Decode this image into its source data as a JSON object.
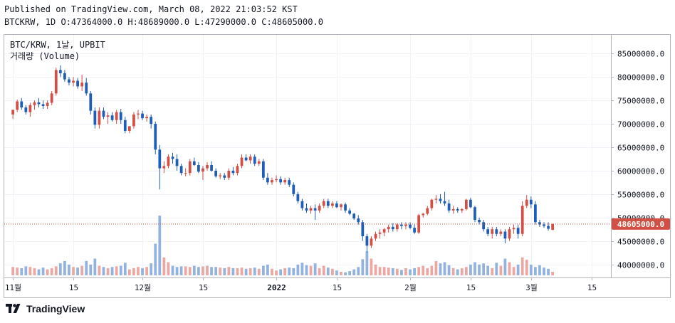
{
  "header": {
    "published_line": "Published on TradingView.com, March 08, 2022 21:03:52 KST",
    "ohlc_line": "BTCKRW, 1D O:47364000.0 H:48689000.0 L:47290000.0 C:48605000.0"
  },
  "legend": {
    "symbol_line": "BTC/KRW, 1날, UPBIT",
    "volume_line": "거래량 (Volume)"
  },
  "colors": {
    "up": "#d24f45",
    "down": "#1e5eb8",
    "vol_up": "#eba8a3",
    "vol_down": "#92b3e0",
    "price_label_bg": "#d24f45"
  },
  "brand": {
    "logo_text": "TradingView"
  },
  "chart_data": {
    "type": "candlestick",
    "title": "BTC/KRW, 1날, UPBIT",
    "yaxis": {
      "ticks": [
        "85000000.0",
        "80000000.0",
        "75000000.0",
        "70000000.0",
        "65000000.0",
        "60000000.0",
        "55000000.0",
        "50000000.0",
        "45000000.0",
        "40000000.0"
      ],
      "tick_values": [
        85000000,
        80000000,
        75000000,
        70000000,
        65000000,
        60000000,
        55000000,
        50000000,
        45000000,
        40000000
      ],
      "range": [
        37200000,
        89000000
      ]
    },
    "xaxis": {
      "ticks": [
        {
          "label": "11월",
          "day": 0
        },
        {
          "label": "15",
          "day": 14
        },
        {
          "label": "12월",
          "day": 30
        },
        {
          "label": "15",
          "day": 44
        },
        {
          "label": "2022",
          "day": 61
        },
        {
          "label": "15",
          "day": 75
        },
        {
          "label": "2월",
          "day": 92
        },
        {
          "label": "15",
          "day": 106
        },
        {
          "label": "3월",
          "day": 120
        },
        {
          "label": "15",
          "day": 134
        }
      ],
      "range_days": [
        -2,
        138.5
      ]
    },
    "last_price": 48605000,
    "last_price_label": "48605000.0",
    "volume_max": 100,
    "candles": [
      {
        "o": 72.0,
        "h": 73.0,
        "l": 71.0,
        "c": 73.0,
        "v": 14
      },
      {
        "o": 73.0,
        "h": 75.2,
        "l": 72.5,
        "c": 74.8,
        "v": 13
      },
      {
        "o": 74.8,
        "h": 75.5,
        "l": 73.0,
        "c": 73.5,
        "v": 12
      },
      {
        "o": 73.5,
        "h": 74.0,
        "l": 72.0,
        "c": 72.5,
        "v": 15
      },
      {
        "o": 72.5,
        "h": 74.5,
        "l": 71.5,
        "c": 74.0,
        "v": 14
      },
      {
        "o": 74.0,
        "h": 75.0,
        "l": 73.0,
        "c": 74.6,
        "v": 12
      },
      {
        "o": 74.6,
        "h": 75.5,
        "l": 73.5,
        "c": 74.2,
        "v": 10
      },
      {
        "o": 74.2,
        "h": 75.0,
        "l": 73.2,
        "c": 73.8,
        "v": 13
      },
      {
        "o": 73.8,
        "h": 75.0,
        "l": 73.2,
        "c": 74.5,
        "v": 10
      },
      {
        "o": 74.5,
        "h": 77.0,
        "l": 74.0,
        "c": 76.5,
        "v": 12
      },
      {
        "o": 76.5,
        "h": 82.0,
        "l": 76.0,
        "c": 81.5,
        "v": 15
      },
      {
        "o": 81.5,
        "h": 82.5,
        "l": 80.0,
        "c": 80.8,
        "v": 20
      },
      {
        "o": 80.8,
        "h": 81.5,
        "l": 79.0,
        "c": 79.5,
        "v": 24
      },
      {
        "o": 79.5,
        "h": 80.0,
        "l": 78.2,
        "c": 78.8,
        "v": 18
      },
      {
        "o": 78.8,
        "h": 80.0,
        "l": 78.0,
        "c": 79.2,
        "v": 14
      },
      {
        "o": 79.2,
        "h": 79.8,
        "l": 77.5,
        "c": 78.0,
        "v": 13
      },
      {
        "o": 78.0,
        "h": 80.5,
        "l": 77.0,
        "c": 78.8,
        "v": 16
      },
      {
        "o": 78.8,
        "h": 79.8,
        "l": 76.0,
        "c": 76.5,
        "v": 24
      },
      {
        "o": 76.5,
        "h": 77.0,
        "l": 72.0,
        "c": 72.8,
        "v": 18
      },
      {
        "o": 72.8,
        "h": 73.5,
        "l": 69.0,
        "c": 69.8,
        "v": 28
      },
      {
        "o": 69.8,
        "h": 73.5,
        "l": 69.0,
        "c": 72.8,
        "v": 16
      },
      {
        "o": 72.8,
        "h": 73.5,
        "l": 71.0,
        "c": 71.5,
        "v": 14
      },
      {
        "o": 71.5,
        "h": 72.5,
        "l": 70.0,
        "c": 71.8,
        "v": 12
      },
      {
        "o": 71.8,
        "h": 72.5,
        "l": 70.5,
        "c": 70.8,
        "v": 14
      },
      {
        "o": 70.8,
        "h": 73.0,
        "l": 70.0,
        "c": 72.5,
        "v": 15
      },
      {
        "o": 72.5,
        "h": 73.2,
        "l": 70.0,
        "c": 70.8,
        "v": 16
      },
      {
        "o": 70.8,
        "h": 71.5,
        "l": 68.0,
        "c": 68.5,
        "v": 21
      },
      {
        "o": 68.5,
        "h": 69.5,
        "l": 68.0,
        "c": 69.5,
        "v": 10
      },
      {
        "o": 69.5,
        "h": 72.5,
        "l": 69.0,
        "c": 72.0,
        "v": 12
      },
      {
        "o": 72.0,
        "h": 73.0,
        "l": 71.0,
        "c": 72.2,
        "v": 14
      },
      {
        "o": 72.2,
        "h": 72.8,
        "l": 70.8,
        "c": 71.2,
        "v": 12
      },
      {
        "o": 71.2,
        "h": 72.0,
        "l": 70.5,
        "c": 71.5,
        "v": 14
      },
      {
        "o": 71.5,
        "h": 72.0,
        "l": 69.0,
        "c": 70.0,
        "v": 20
      },
      {
        "o": 70.0,
        "h": 70.5,
        "l": 63.5,
        "c": 64.5,
        "v": 53
      },
      {
        "o": 64.5,
        "h": 65.5,
        "l": 56.0,
        "c": 60.5,
        "v": 100
      },
      {
        "o": 60.5,
        "h": 62.0,
        "l": 59.5,
        "c": 61.0,
        "v": 30
      },
      {
        "o": 61.0,
        "h": 63.5,
        "l": 60.5,
        "c": 63.0,
        "v": 22
      },
      {
        "o": 63.0,
        "h": 63.8,
        "l": 61.5,
        "c": 62.5,
        "v": 16
      },
      {
        "o": 62.5,
        "h": 63.5,
        "l": 60.0,
        "c": 61.0,
        "v": 14
      },
      {
        "o": 61.0,
        "h": 61.5,
        "l": 59.0,
        "c": 59.5,
        "v": 15
      },
      {
        "o": 59.5,
        "h": 60.5,
        "l": 58.8,
        "c": 59.5,
        "v": 15
      },
      {
        "o": 59.5,
        "h": 62.5,
        "l": 59.0,
        "c": 62.0,
        "v": 14
      },
      {
        "o": 62.0,
        "h": 62.8,
        "l": 61.0,
        "c": 61.2,
        "v": 16
      },
      {
        "o": 61.2,
        "h": 61.8,
        "l": 59.5,
        "c": 59.8,
        "v": 14
      },
      {
        "o": 59.8,
        "h": 61.0,
        "l": 58.0,
        "c": 60.5,
        "v": 15
      },
      {
        "o": 60.5,
        "h": 61.8,
        "l": 60.0,
        "c": 61.2,
        "v": 16
      },
      {
        "o": 61.2,
        "h": 62.0,
        "l": 59.8,
        "c": 60.0,
        "v": 14
      },
      {
        "o": 60.0,
        "h": 60.5,
        "l": 58.5,
        "c": 58.8,
        "v": 14
      },
      {
        "o": 58.8,
        "h": 59.5,
        "l": 58.2,
        "c": 59.0,
        "v": 13
      },
      {
        "o": 59.0,
        "h": 59.5,
        "l": 58.0,
        "c": 58.5,
        "v": 12
      },
      {
        "o": 58.5,
        "h": 60.5,
        "l": 58.0,
        "c": 60.0,
        "v": 14
      },
      {
        "o": 60.0,
        "h": 60.8,
        "l": 59.0,
        "c": 59.5,
        "v": 12
      },
      {
        "o": 59.5,
        "h": 61.5,
        "l": 59.0,
        "c": 61.0,
        "v": 12
      },
      {
        "o": 61.0,
        "h": 63.5,
        "l": 60.5,
        "c": 62.8,
        "v": 13
      },
      {
        "o": 62.8,
        "h": 63.5,
        "l": 62.0,
        "c": 62.2,
        "v": 11
      },
      {
        "o": 62.2,
        "h": 63.5,
        "l": 61.5,
        "c": 63.0,
        "v": 12
      },
      {
        "o": 63.0,
        "h": 63.5,
        "l": 61.0,
        "c": 61.5,
        "v": 13
      },
      {
        "o": 61.5,
        "h": 62.5,
        "l": 61.0,
        "c": 62.0,
        "v": 11
      },
      {
        "o": 62.0,
        "h": 62.5,
        "l": 58.0,
        "c": 58.5,
        "v": 16
      },
      {
        "o": 58.5,
        "h": 59.5,
        "l": 57.0,
        "c": 57.5,
        "v": 18
      },
      {
        "o": 57.5,
        "h": 58.5,
        "l": 57.0,
        "c": 58.0,
        "v": 11
      },
      {
        "o": 58.0,
        "h": 59.0,
        "l": 57.5,
        "c": 58.2,
        "v": 8
      },
      {
        "o": 58.2,
        "h": 58.8,
        "l": 57.0,
        "c": 57.5,
        "v": 10
      },
      {
        "o": 57.5,
        "h": 58.5,
        "l": 57.0,
        "c": 58.0,
        "v": 12
      },
      {
        "o": 58.0,
        "h": 58.5,
        "l": 56.5,
        "c": 57.0,
        "v": 13
      },
      {
        "o": 57.0,
        "h": 57.5,
        "l": 54.5,
        "c": 55.0,
        "v": 12
      },
      {
        "o": 55.0,
        "h": 55.5,
        "l": 53.0,
        "c": 53.5,
        "v": 18
      },
      {
        "o": 53.5,
        "h": 54.0,
        "l": 51.5,
        "c": 52.0,
        "v": 21
      },
      {
        "o": 52.0,
        "h": 53.0,
        "l": 51.0,
        "c": 51.5,
        "v": 17
      },
      {
        "o": 51.5,
        "h": 52.5,
        "l": 50.8,
        "c": 52.0,
        "v": 16
      },
      {
        "o": 52.0,
        "h": 52.8,
        "l": 49.5,
        "c": 51.5,
        "v": 20
      },
      {
        "o": 51.5,
        "h": 53.0,
        "l": 51.0,
        "c": 52.5,
        "v": 12
      },
      {
        "o": 52.5,
        "h": 54.0,
        "l": 52.0,
        "c": 53.5,
        "v": 16
      },
      {
        "o": 53.5,
        "h": 54.0,
        "l": 52.0,
        "c": 52.5,
        "v": 13
      },
      {
        "o": 52.5,
        "h": 53.5,
        "l": 52.0,
        "c": 53.0,
        "v": 11
      },
      {
        "o": 53.0,
        "h": 53.5,
        "l": 52.0,
        "c": 52.2,
        "v": 8
      },
      {
        "o": 52.2,
        "h": 53.0,
        "l": 51.5,
        "c": 52.8,
        "v": 6
      },
      {
        "o": 52.8,
        "h": 53.2,
        "l": 51.0,
        "c": 51.5,
        "v": 5
      },
      {
        "o": 51.5,
        "h": 52.0,
        "l": 50.5,
        "c": 50.8,
        "v": 7
      },
      {
        "o": 50.8,
        "h": 51.0,
        "l": 49.5,
        "c": 49.8,
        "v": 10
      },
      {
        "o": 49.8,
        "h": 50.5,
        "l": 48.5,
        "c": 49.0,
        "v": 14
      },
      {
        "o": 49.0,
        "h": 49.5,
        "l": 45.0,
        "c": 46.0,
        "v": 27
      },
      {
        "o": 46.0,
        "h": 46.5,
        "l": 42.5,
        "c": 44.0,
        "v": 40
      },
      {
        "o": 44.0,
        "h": 46.0,
        "l": 43.5,
        "c": 45.5,
        "v": 28
      },
      {
        "o": 45.5,
        "h": 47.0,
        "l": 45.0,
        "c": 46.5,
        "v": 18
      },
      {
        "o": 46.5,
        "h": 47.5,
        "l": 45.5,
        "c": 46.8,
        "v": 14
      },
      {
        "o": 46.8,
        "h": 47.8,
        "l": 46.0,
        "c": 47.5,
        "v": 14
      },
      {
        "o": 47.5,
        "h": 48.5,
        "l": 46.8,
        "c": 48.0,
        "v": 13
      },
      {
        "o": 48.0,
        "h": 48.8,
        "l": 47.0,
        "c": 47.5,
        "v": 12
      },
      {
        "o": 47.5,
        "h": 48.8,
        "l": 47.0,
        "c": 48.5,
        "v": 11
      },
      {
        "o": 48.5,
        "h": 49.0,
        "l": 47.5,
        "c": 48.2,
        "v": 9
      },
      {
        "o": 48.2,
        "h": 49.0,
        "l": 47.5,
        "c": 48.5,
        "v": 12
      },
      {
        "o": 48.5,
        "h": 49.0,
        "l": 47.5,
        "c": 47.8,
        "v": 10
      },
      {
        "o": 47.8,
        "h": 48.5,
        "l": 46.5,
        "c": 46.8,
        "v": 12
      },
      {
        "o": 46.8,
        "h": 50.8,
        "l": 46.5,
        "c": 50.5,
        "v": 14
      },
      {
        "o": 50.5,
        "h": 51.0,
        "l": 50.0,
        "c": 50.8,
        "v": 16
      },
      {
        "o": 50.8,
        "h": 52.5,
        "l": 50.5,
        "c": 52.0,
        "v": 12
      },
      {
        "o": 52.0,
        "h": 54.0,
        "l": 51.5,
        "c": 53.8,
        "v": 16
      },
      {
        "o": 53.8,
        "h": 54.8,
        "l": 53.0,
        "c": 54.0,
        "v": 24
      },
      {
        "o": 54.0,
        "h": 55.0,
        "l": 53.0,
        "c": 53.5,
        "v": 20
      },
      {
        "o": 53.5,
        "h": 55.5,
        "l": 52.5,
        "c": 53.0,
        "v": 22
      },
      {
        "o": 53.0,
        "h": 53.8,
        "l": 51.0,
        "c": 51.5,
        "v": 17
      },
      {
        "o": 51.5,
        "h": 52.5,
        "l": 50.8,
        "c": 51.8,
        "v": 12
      },
      {
        "o": 51.8,
        "h": 52.2,
        "l": 51.0,
        "c": 51.5,
        "v": 10
      },
      {
        "o": 51.5,
        "h": 52.0,
        "l": 51.0,
        "c": 51.8,
        "v": 12
      },
      {
        "o": 51.8,
        "h": 54.0,
        "l": 51.5,
        "c": 53.8,
        "v": 14
      },
      {
        "o": 53.8,
        "h": 54.2,
        "l": 52.0,
        "c": 52.2,
        "v": 18
      },
      {
        "o": 52.2,
        "h": 52.5,
        "l": 49.0,
        "c": 49.5,
        "v": 22
      },
      {
        "o": 49.5,
        "h": 50.0,
        "l": 48.5,
        "c": 49.0,
        "v": 18
      },
      {
        "o": 49.0,
        "h": 49.5,
        "l": 47.0,
        "c": 47.5,
        "v": 20
      },
      {
        "o": 47.5,
        "h": 48.0,
        "l": 46.0,
        "c": 46.5,
        "v": 16
      },
      {
        "o": 46.5,
        "h": 48.0,
        "l": 45.5,
        "c": 47.5,
        "v": 12
      },
      {
        "o": 47.5,
        "h": 48.0,
        "l": 46.0,
        "c": 46.5,
        "v": 21
      },
      {
        "o": 46.5,
        "h": 47.5,
        "l": 46.0,
        "c": 47.0,
        "v": 16
      },
      {
        "o": 47.0,
        "h": 47.5,
        "l": 44.5,
        "c": 45.5,
        "v": 28
      },
      {
        "o": 45.5,
        "h": 48.0,
        "l": 45.0,
        "c": 47.5,
        "v": 22
      },
      {
        "o": 47.5,
        "h": 48.5,
        "l": 46.5,
        "c": 47.8,
        "v": 14
      },
      {
        "o": 47.8,
        "h": 48.5,
        "l": 45.5,
        "c": 46.5,
        "v": 18
      },
      {
        "o": 46.5,
        "h": 53.5,
        "l": 46.0,
        "c": 52.5,
        "v": 30
      },
      {
        "o": 52.5,
        "h": 54.8,
        "l": 52.0,
        "c": 53.8,
        "v": 26
      },
      {
        "o": 53.8,
        "h": 54.5,
        "l": 52.0,
        "c": 52.8,
        "v": 18
      },
      {
        "o": 52.8,
        "h": 53.5,
        "l": 48.5,
        "c": 49.0,
        "v": 14
      },
      {
        "o": 49.0,
        "h": 49.5,
        "l": 48.0,
        "c": 48.5,
        "v": 17
      },
      {
        "o": 48.5,
        "h": 49.0,
        "l": 47.8,
        "c": 48.2,
        "v": 13
      },
      {
        "o": 48.2,
        "h": 49.0,
        "l": 47.2,
        "c": 47.6,
        "v": 11
      },
      {
        "o": 47.364,
        "h": 48.689,
        "l": 47.29,
        "c": 48.605,
        "v": 6
      }
    ]
  }
}
